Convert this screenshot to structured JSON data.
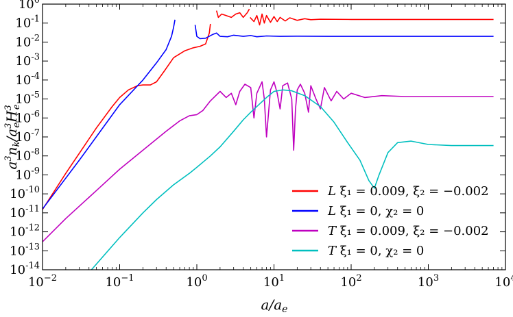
{
  "chart_data": {
    "type": "line",
    "title": "",
    "xlabel": "a/a_e",
    "ylabel": "a^3 n_k / a_e^3 H_e^3",
    "xscale": "log",
    "yscale": "log",
    "xlim": [
      0.01,
      10000
    ],
    "ylim": [
      1e-14,
      1
    ],
    "x_ticks": [
      {
        "value": 0.01,
        "base": "10",
        "exp": "−2"
      },
      {
        "value": 0.1,
        "base": "10",
        "exp": "−1"
      },
      {
        "value": 1,
        "base": "10",
        "exp": "0"
      },
      {
        "value": 10,
        "base": "10",
        "exp": "1"
      },
      {
        "value": 100,
        "base": "10",
        "exp": "2"
      },
      {
        "value": 1000,
        "base": "10",
        "exp": "3"
      },
      {
        "value": 10000,
        "base": "10",
        "exp": "4"
      }
    ],
    "y_ticks": [
      {
        "value": 1,
        "base": "10",
        "exp": "0"
      },
      {
        "value": 0.1,
        "base": "10",
        "exp": "-1"
      },
      {
        "value": 0.01,
        "base": "10",
        "exp": "-2"
      },
      {
        "value": 0.001,
        "base": "10",
        "exp": "-3"
      },
      {
        "value": 0.0001,
        "base": "10",
        "exp": "-4"
      },
      {
        "value": 1e-05,
        "base": "10",
        "exp": "-5"
      },
      {
        "value": 1e-06,
        "base": "10",
        "exp": "-6"
      },
      {
        "value": 1e-07,
        "base": "10",
        "exp": "-7"
      },
      {
        "value": 1e-08,
        "base": "10",
        "exp": "-8"
      },
      {
        "value": 1e-09,
        "base": "10",
        "exp": "-9"
      },
      {
        "value": 1e-10,
        "base": "10",
        "exp": "-10"
      },
      {
        "value": 1e-11,
        "base": "10",
        "exp": "-11"
      },
      {
        "value": 1e-12,
        "base": "10",
        "exp": "-12"
      },
      {
        "value": 1e-13,
        "base": "10",
        "exp": "-13"
      },
      {
        "value": 1e-14,
        "base": "10",
        "exp": "-14"
      }
    ],
    "legend_position": "lower-right",
    "series": [
      {
        "name": "L ξ1 = 0.009, ξ2 = −0.002",
        "legend_prefix": "L",
        "legend_rest": " ξ₁ = 0.009, ξ₂ = −0.002",
        "color": "#ff0000",
        "segments": [
          [
            [
              0.01,
              1.5e-11
            ],
            [
              0.02,
              1.2e-09
            ],
            [
              0.05,
              3e-07
            ],
            [
              0.08,
              4e-06
            ],
            [
              0.1,
              1.2e-05
            ],
            [
              0.13,
              3e-05
            ],
            [
              0.17,
              5e-05
            ],
            [
              0.2,
              5.5e-05
            ],
            [
              0.25,
              5.5e-05
            ],
            [
              0.3,
              8e-05
            ],
            [
              0.38,
              0.0003
            ],
            [
              0.5,
              0.0015
            ],
            [
              0.7,
              0.0035
            ],
            [
              0.9,
              0.005
            ],
            [
              1.1,
              0.006
            ],
            [
              1.3,
              0.008
            ],
            [
              1.45,
              0.03
            ],
            [
              1.5,
              0.09
            ]
          ],
          [
            [
              1.8,
              0.45
            ],
            [
              1.9,
              0.2
            ],
            [
              2.1,
              0.3
            ],
            [
              2.4,
              0.25
            ],
            [
              2.8,
              0.2
            ],
            [
              3.2,
              0.3
            ],
            [
              3.6,
              0.35
            ],
            [
              4.0,
              0.2
            ],
            [
              4.5,
              0.35
            ],
            [
              4.8,
              0.55
            ]
          ],
          [
            [
              4.9,
              0.2
            ],
            [
              5.5,
              0.12
            ],
            [
              6.0,
              0.25
            ],
            [
              6.5,
              0.08
            ],
            [
              7.0,
              0.3
            ],
            [
              7.5,
              0.1
            ],
            [
              8.0,
              0.25
            ],
            [
              9.0,
              0.11
            ],
            [
              10,
              0.22
            ],
            [
              11,
              0.12
            ],
            [
              12,
              0.2
            ],
            [
              14,
              0.13
            ],
            [
              16,
              0.19
            ],
            [
              20,
              0.14
            ],
            [
              25,
              0.17
            ],
            [
              30,
              0.15
            ],
            [
              40,
              0.16
            ],
            [
              100,
              0.155
            ],
            [
              1000,
              0.155
            ],
            [
              7000,
              0.155
            ]
          ]
        ]
      },
      {
        "name": "L ξ1 = 0, χ2 = 0",
        "legend_prefix": "L",
        "legend_rest": " ξ₁ = 0, χ₂ = 0",
        "color": "#0000ff",
        "segments": [
          [
            [
              0.01,
              1.6e-11
            ],
            [
              0.03,
              6e-09
            ],
            [
              0.1,
              5e-06
            ],
            [
              0.2,
              0.0001
            ],
            [
              0.3,
              0.0008
            ],
            [
              0.4,
              0.004
            ],
            [
              0.47,
              0.02
            ],
            [
              0.5,
              0.06
            ],
            [
              0.52,
              0.15
            ]
          ],
          [
            [
              0.95,
              0.08
            ],
            [
              1.0,
              0.02
            ],
            [
              1.1,
              0.015
            ],
            [
              1.3,
              0.016
            ],
            [
              1.6,
              0.025
            ],
            [
              1.8,
              0.03
            ],
            [
              2.0,
              0.02
            ],
            [
              2.5,
              0.019
            ],
            [
              3,
              0.023
            ],
            [
              4,
              0.02
            ],
            [
              5,
              0.022
            ],
            [
              6,
              0.019
            ],
            [
              8,
              0.021
            ],
            [
              12,
              0.02
            ],
            [
              20,
              0.0205
            ],
            [
              50,
              0.02
            ],
            [
              7000,
              0.02
            ]
          ]
        ]
      },
      {
        "name": "T ξ1 = 0.009, ξ2 = −0.002",
        "legend_prefix": "T",
        "legend_rest": " ξ₁ = 0.009, ξ₂ = −0.002",
        "color": "#bf00bf",
        "segments": [
          [
            [
              0.01,
              3e-13
            ],
            [
              0.02,
              5e-12
            ],
            [
              0.05,
              1.5e-10
            ],
            [
              0.1,
              2e-09
            ],
            [
              0.2,
              2e-08
            ],
            [
              0.4,
              2e-07
            ],
            [
              0.6,
              7e-07
            ],
            [
              0.8,
              1.3e-06
            ],
            [
              1.0,
              1.5e-06
            ],
            [
              1.2,
              2.5e-06
            ],
            [
              1.5,
              8e-06
            ],
            [
              2.0,
              2.5e-05
            ],
            [
              2.4,
              1.2e-05
            ],
            [
              2.8,
              2e-05
            ],
            [
              3.2,
              5e-06
            ],
            [
              3.6,
              2.5e-05
            ],
            [
              4.2,
              6e-05
            ],
            [
              5,
              4e-05
            ],
            [
              5.5,
              1e-06
            ],
            [
              6,
              2e-05
            ],
            [
              7,
              8e-05
            ],
            [
              7.5,
              1e-05
            ],
            [
              8,
              1e-07
            ],
            [
              9,
              3e-05
            ],
            [
              10,
              8e-05
            ],
            [
              11,
              2e-05
            ],
            [
              12,
              3e-06
            ],
            [
              13,
              5e-05
            ],
            [
              15,
              7e-05
            ],
            [
              17,
              1e-05
            ],
            [
              18,
              2e-08
            ],
            [
              19,
              3e-06
            ],
            [
              20,
              3e-05
            ],
            [
              22,
              6e-05
            ],
            [
              25,
              2e-05
            ],
            [
              28,
              2e-06
            ],
            [
              30,
              5e-05
            ],
            [
              35,
              1e-05
            ],
            [
              40,
              3e-06
            ],
            [
              45,
              4e-05
            ],
            [
              55,
              8e-06
            ],
            [
              65,
              2.5e-05
            ],
            [
              80,
              1e-05
            ],
            [
              100,
              2e-05
            ],
            [
              150,
              1.2e-05
            ],
            [
              250,
              1.5e-05
            ],
            [
              500,
              1.35e-05
            ],
            [
              7000,
              1.35e-05
            ]
          ]
        ]
      },
      {
        "name": "T ξ1 = 0, χ2 = 0",
        "legend_prefix": "T",
        "legend_rest": " ξ₁ = 0, χ₂ = 0",
        "color": "#00bfbf",
        "segments": [
          [
            [
              0.043,
              1e-14
            ],
            [
              0.1,
              5e-13
            ],
            [
              0.2,
              1e-11
            ],
            [
              0.3,
              5e-11
            ],
            [
              0.5,
              3e-10
            ],
            [
              0.8,
              1.2e-09
            ],
            [
              1,
              2.5e-09
            ],
            [
              1.5,
              1e-08
            ],
            [
              2,
              3e-08
            ],
            [
              3,
              2e-07
            ],
            [
              4,
              8e-07
            ],
            [
              5,
              2e-06
            ],
            [
              6,
              4e-06
            ],
            [
              8,
              1.2e-05
            ],
            [
              10,
              2.5e-05
            ],
            [
              13,
              3e-05
            ],
            [
              17,
              2.7e-05
            ],
            [
              25,
              1.5e-05
            ],
            [
              40,
              4e-06
            ],
            [
              60,
              6e-07
            ],
            [
              90,
              5e-08
            ],
            [
              130,
              6e-09
            ],
            [
              170,
              5e-10
            ],
            [
              200,
              2e-10
            ],
            [
              230,
              1e-09
            ],
            [
              300,
              1.5e-08
            ],
            [
              400,
              5e-08
            ],
            [
              600,
              6e-08
            ],
            [
              1000,
              4e-08
            ],
            [
              2000,
              3.5e-08
            ],
            [
              7000,
              3.5e-08
            ]
          ]
        ]
      }
    ]
  }
}
